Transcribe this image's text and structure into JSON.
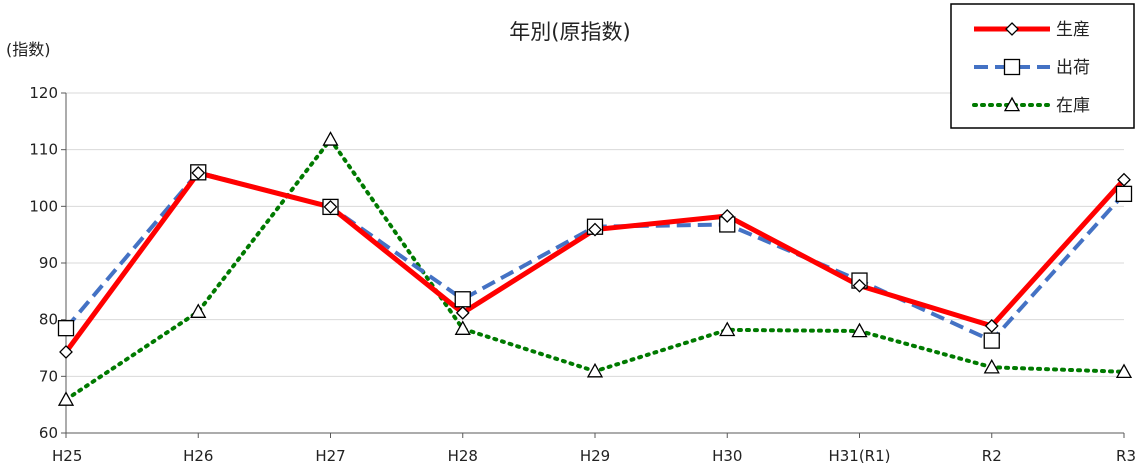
{
  "chart_data": {
    "type": "line",
    "title": "年別(原指数)",
    "ylabel": "(指数)",
    "xlabel": "",
    "ylim": [
      60,
      120
    ],
    "yticks": [
      60,
      70,
      80,
      90,
      100,
      110,
      120
    ],
    "grid": true,
    "legend_position": "top-right",
    "categories": [
      "H25",
      "H26",
      "H27",
      "H28",
      "H29",
      "H30",
      "H31(R1)",
      "R2",
      "R3"
    ],
    "series": [
      {
        "name": "生産",
        "color": "#ff0000",
        "line_style": "solid",
        "marker": "diamond",
        "values": [
          74.3,
          105.9,
          99.9,
          81.2,
          95.9,
          98.3,
          86.0,
          78.9,
          104.7
        ]
      },
      {
        "name": "出荷",
        "color": "#4472c4",
        "line_style": "dashed",
        "marker": "square",
        "values": [
          78.5,
          106.0,
          99.9,
          83.6,
          96.4,
          96.8,
          86.9,
          76.3,
          102.2
        ]
      },
      {
        "name": "在庫",
        "color": "#007a00",
        "line_style": "dotted",
        "marker": "triangle",
        "values": [
          65.9,
          81.4,
          111.8,
          78.4,
          70.9,
          78.2,
          78.0,
          71.6,
          70.8
        ]
      }
    ]
  }
}
